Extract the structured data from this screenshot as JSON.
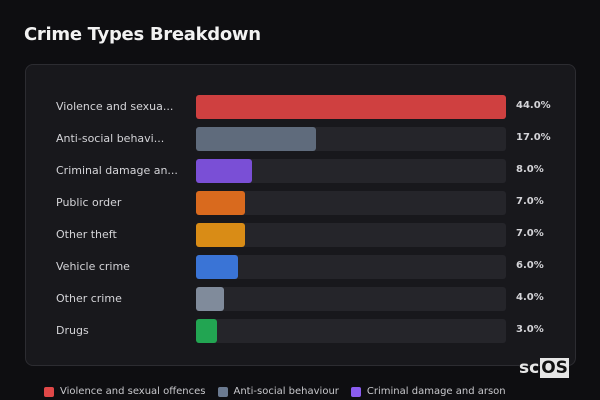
{
  "title": "Crime Types Breakdown",
  "chart_data": {
    "type": "bar",
    "orientation": "horizontal",
    "title": "Crime Types Breakdown",
    "categories": [
      "Violence and sexua...",
      "Anti-social behavi...",
      "Criminal damage an...",
      "Public order",
      "Other theft",
      "Vehicle crime",
      "Other crime",
      "Drugs"
    ],
    "values": [
      44.0,
      17.0,
      8.0,
      7.0,
      7.0,
      6.0,
      4.0,
      3.0
    ],
    "value_labels": [
      "44.0%",
      "17.0%",
      "8.0%",
      "7.0%",
      "7.0%",
      "6.0%",
      "4.0%",
      "3.0%"
    ],
    "colors": [
      "#cf4040",
      "#5f6b7c",
      "#7a4fd6",
      "#d96a1e",
      "#d98c16",
      "#3a74d6",
      "#808b9b",
      "#22a552"
    ],
    "xlim": [
      0,
      44
    ],
    "legend": {
      "placement": "bottom",
      "entries": [
        {
          "label": "Violence and sexual offences",
          "color": "#e04848"
        },
        {
          "label": "Anti-social behaviour",
          "color": "#6b7a90"
        },
        {
          "label": "Criminal damage and arson",
          "color": "#8a5cf0"
        }
      ]
    }
  },
  "logo": {
    "text_plain": "sc",
    "text_box": "OS"
  }
}
